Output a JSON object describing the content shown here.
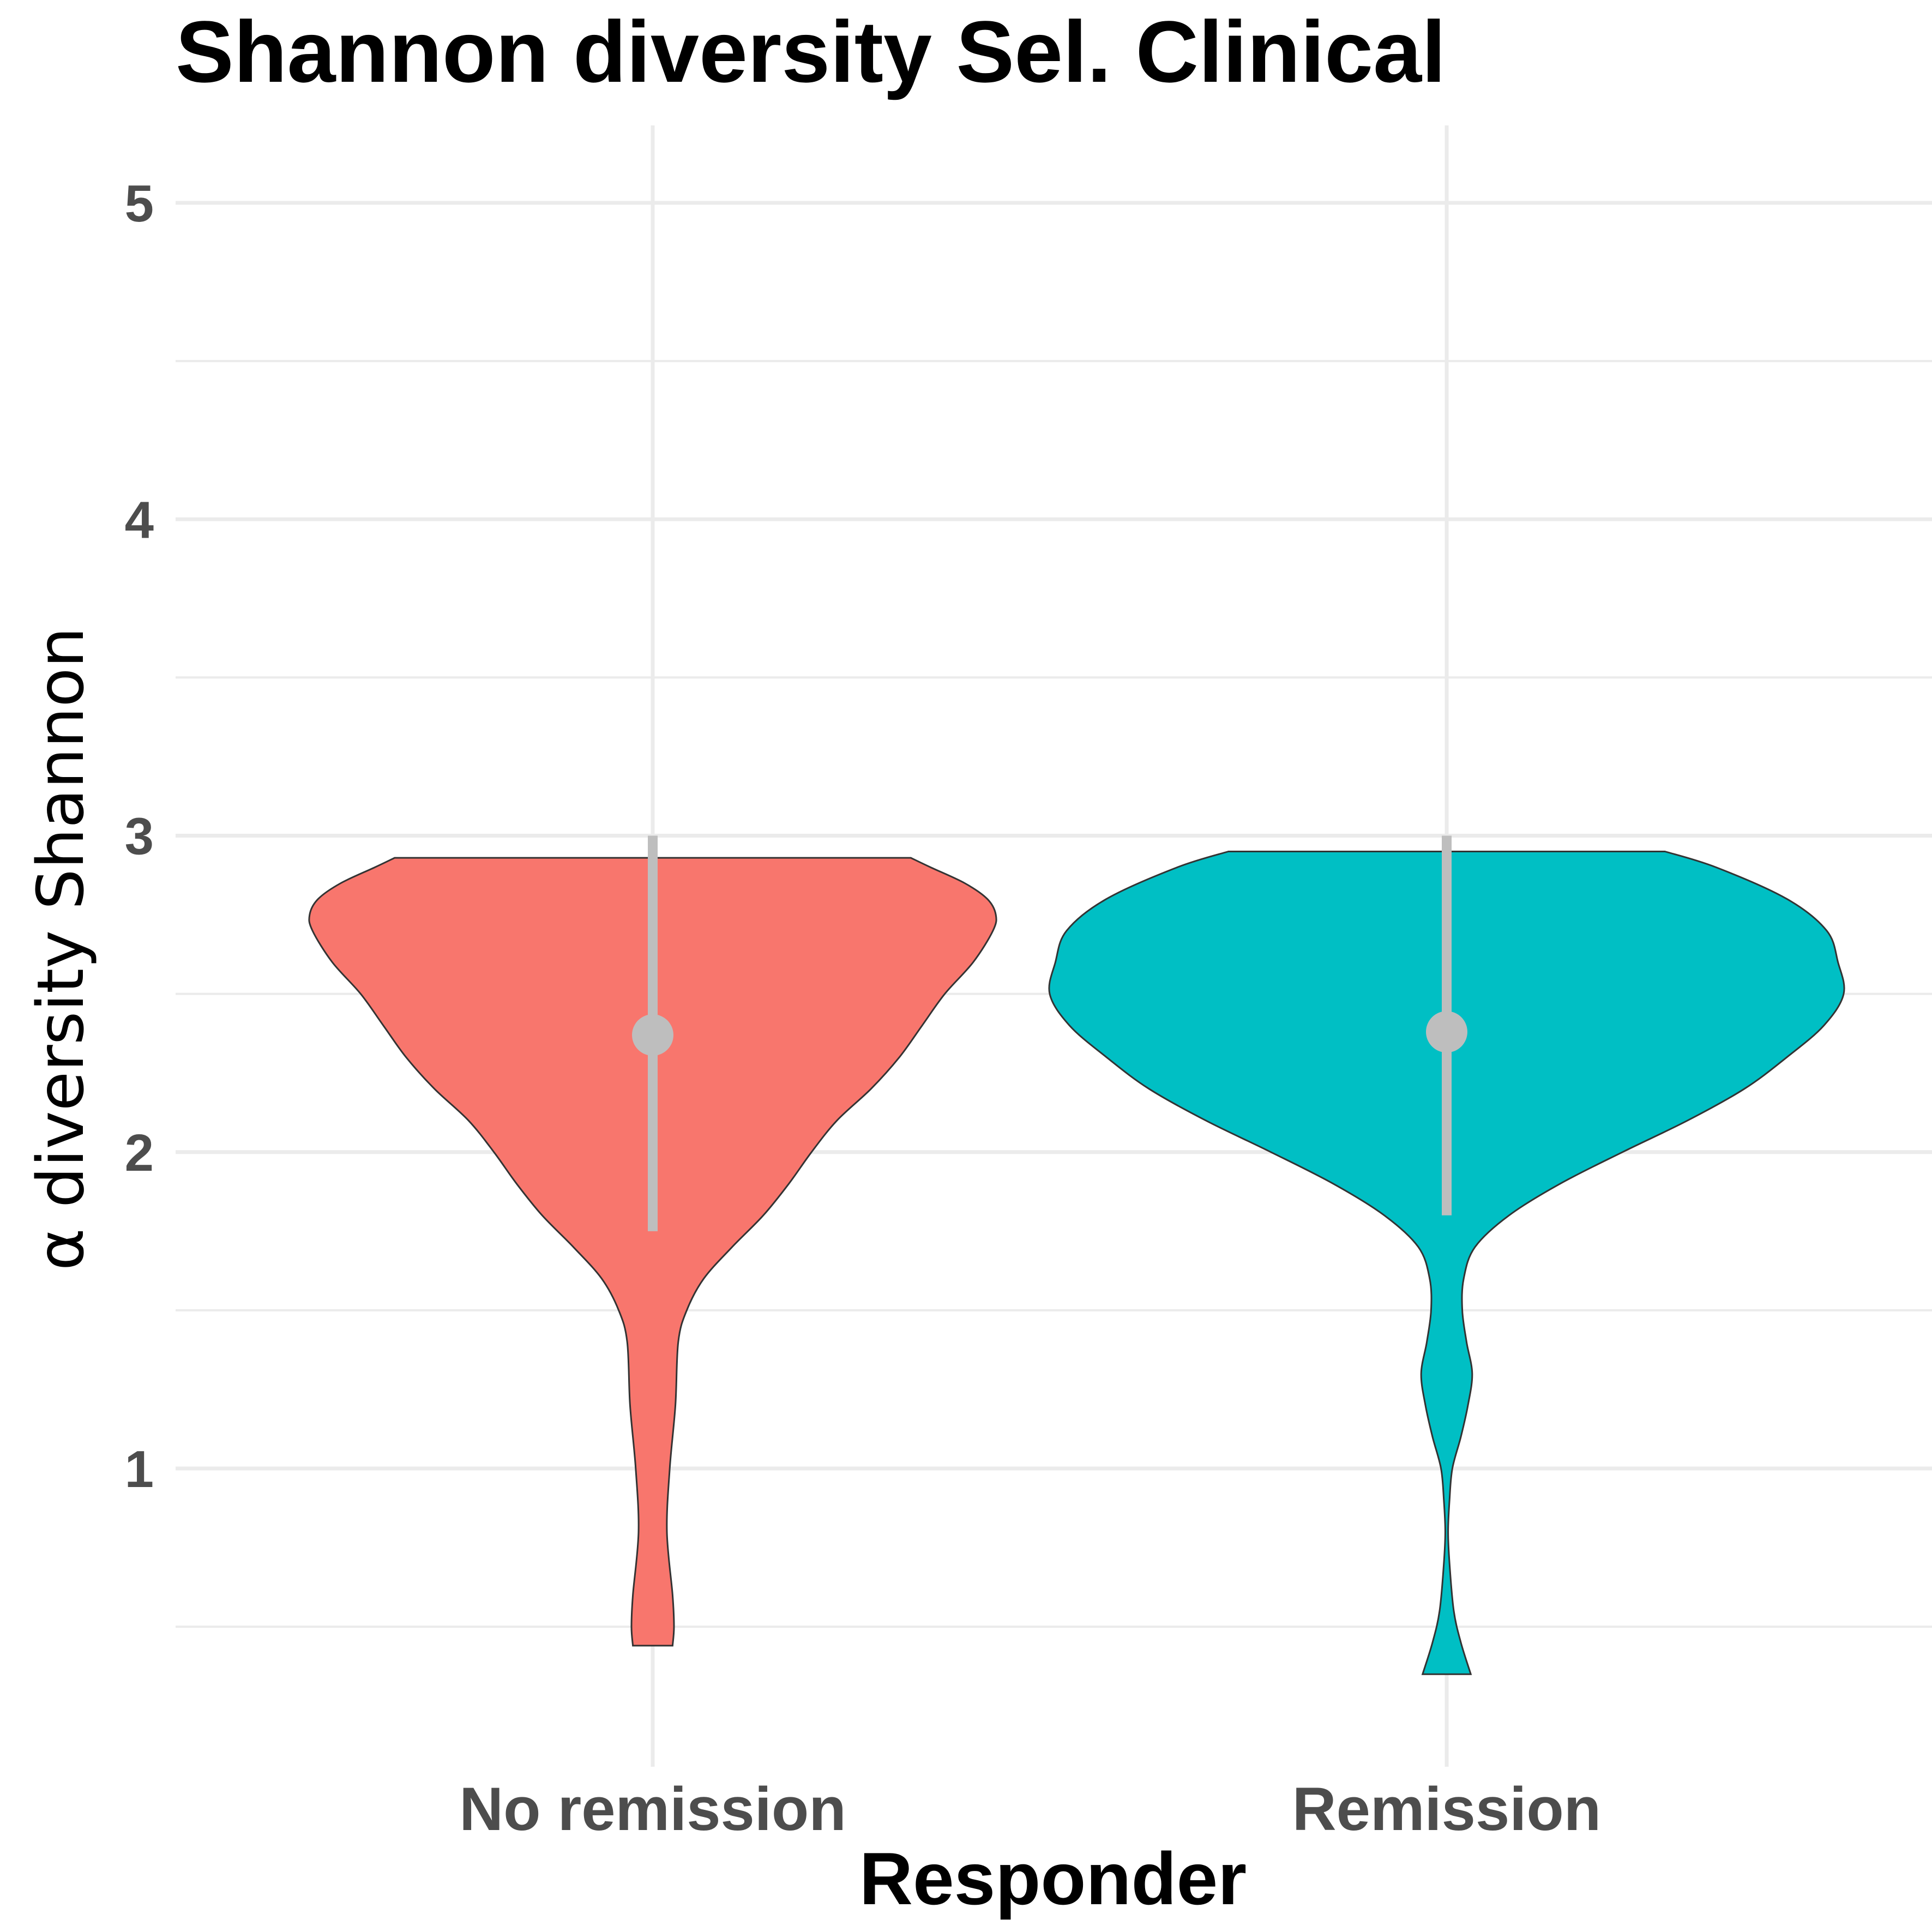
{
  "chart_data": {
    "type": "violin",
    "title": "Shannon diversity Sel. Clinical",
    "xlabel": "Responder",
    "ylabel": "α diversity Shannon",
    "categories": [
      "No remission",
      "Remission"
    ],
    "yticks": [
      "1",
      "2",
      "3",
      "4",
      "5"
    ],
    "ytick_values": [
      1,
      2,
      3,
      4,
      5
    ],
    "ylim": [
      0.35,
      5.2
    ],
    "grid": true,
    "legend": "none",
    "series": [
      {
        "category": "No remission",
        "color": "#F8766D",
        "y_min": 0.44,
        "y_max": 2.93,
        "density_profile": [
          [
            0.44,
            0.07
          ],
          [
            0.5,
            0.075
          ],
          [
            0.6,
            0.07
          ],
          [
            0.8,
            0.05
          ],
          [
            1.0,
            0.06
          ],
          [
            1.2,
            0.08
          ],
          [
            1.4,
            0.09
          ],
          [
            1.5,
            0.12
          ],
          [
            1.6,
            0.18
          ],
          [
            1.7,
            0.28
          ],
          [
            1.8,
            0.39
          ],
          [
            1.9,
            0.48
          ],
          [
            2.0,
            0.56
          ],
          [
            2.1,
            0.65
          ],
          [
            2.2,
            0.77
          ],
          [
            2.3,
            0.87
          ],
          [
            2.4,
            0.95
          ],
          [
            2.5,
            1.03
          ],
          [
            2.6,
            1.13
          ],
          [
            2.7,
            1.2
          ],
          [
            2.75,
            1.21
          ],
          [
            2.8,
            1.18
          ],
          [
            2.85,
            1.1
          ],
          [
            2.9,
            0.98
          ],
          [
            2.93,
            0.91
          ]
        ],
        "mean": 2.37,
        "error_low": 1.75,
        "error_high": 3.0
      },
      {
        "category": "Remission",
        "color": "#00BFC4",
        "y_min": 0.35,
        "y_max": 2.95,
        "density_profile": [
          [
            0.35,
            0.085
          ],
          [
            0.45,
            0.05
          ],
          [
            0.55,
            0.025
          ],
          [
            0.7,
            0.01
          ],
          [
            0.8,
            0.005
          ],
          [
            0.9,
            0.01
          ],
          [
            1.0,
            0.02
          ],
          [
            1.1,
            0.05
          ],
          [
            1.2,
            0.075
          ],
          [
            1.3,
            0.09
          ],
          [
            1.4,
            0.07
          ],
          [
            1.5,
            0.055
          ],
          [
            1.6,
            0.06
          ],
          [
            1.7,
            0.1
          ],
          [
            1.8,
            0.22
          ],
          [
            1.9,
            0.4
          ],
          [
            2.0,
            0.62
          ],
          [
            2.1,
            0.85
          ],
          [
            2.2,
            1.05
          ],
          [
            2.3,
            1.2
          ],
          [
            2.4,
            1.33
          ],
          [
            2.5,
            1.4
          ],
          [
            2.6,
            1.38
          ],
          [
            2.7,
            1.34
          ],
          [
            2.8,
            1.2
          ],
          [
            2.9,
            0.95
          ],
          [
            2.95,
            0.77
          ]
        ],
        "mean": 2.38,
        "error_low": 1.8,
        "error_high": 3.0
      }
    ],
    "summary_color": "#BEBEBE"
  }
}
